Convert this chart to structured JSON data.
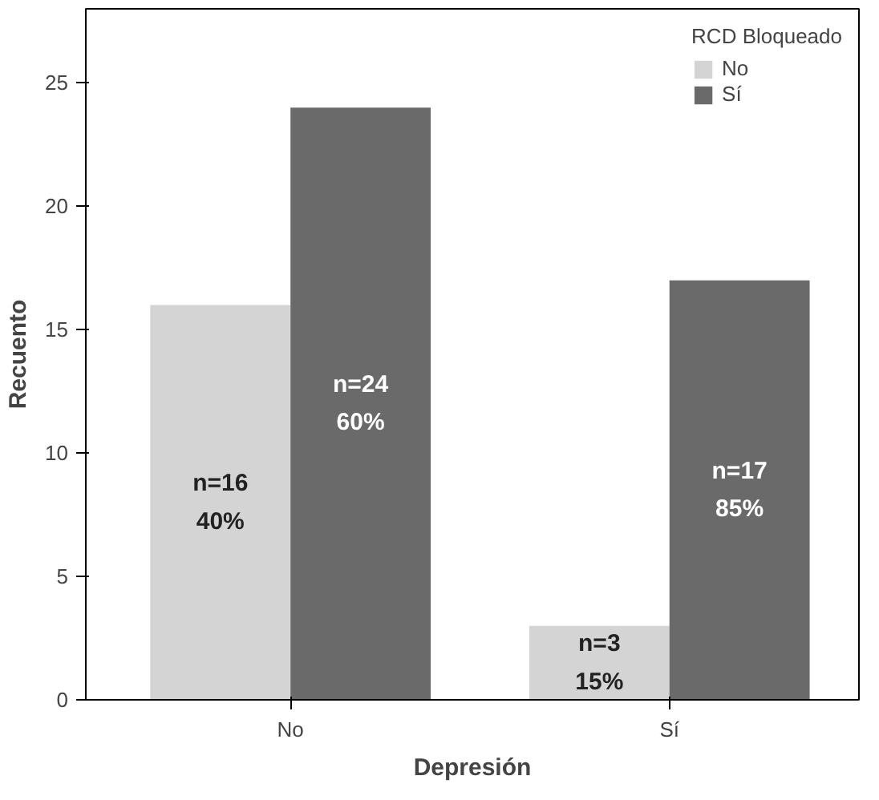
{
  "chart_data": {
    "type": "bar",
    "xlabel": "Depresión",
    "ylabel": "Recuento",
    "legend_title": "RCD Bloqueado",
    "categories": [
      "No",
      "Sí"
    ],
    "series": [
      {
        "name": "No",
        "color": "#d4d4d4",
        "values": [
          16,
          3
        ],
        "value_labels": [
          "n=16\n40%",
          "n=3\n15%"
        ]
      },
      {
        "name": "Sí",
        "color": "#6a6a6a",
        "values": [
          24,
          17
        ],
        "value_labels": [
          "n=24\n60%",
          "n=17\n85%"
        ]
      }
    ],
    "ylim": [
      0,
      28
    ],
    "yticks": [
      0,
      5,
      10,
      15,
      20,
      25
    ],
    "grid": false,
    "legend": "top right"
  }
}
